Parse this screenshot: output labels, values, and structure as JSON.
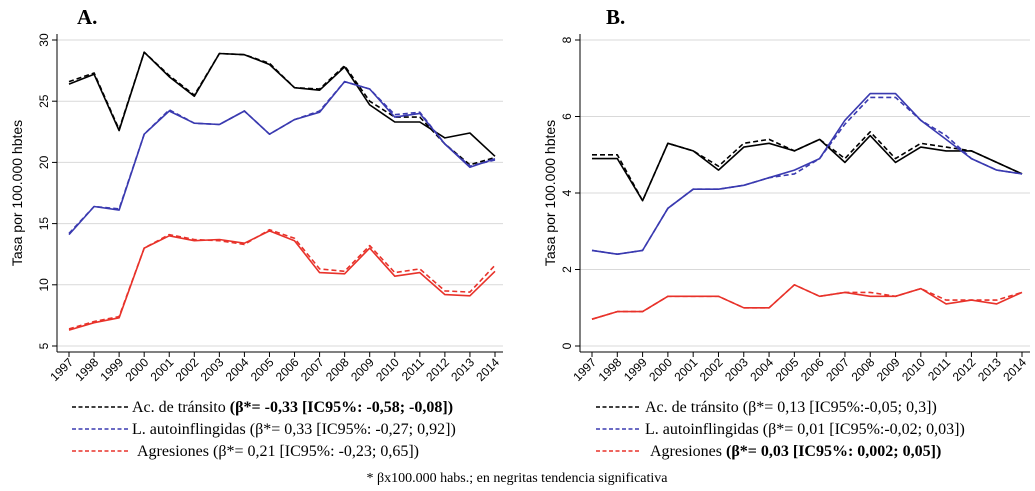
{
  "colors": {
    "transito": "#000000",
    "autoinfligidas": "#3a3ab0",
    "agresiones": "#e8322a",
    "grid": "#d9d9d9"
  },
  "chart_data": [
    {
      "type": "line",
      "panel_label": "A.",
      "ylabel": "Tasa por 100.000 hbtes",
      "ylim": [
        5,
        30
      ],
      "yticks": [
        5,
        10,
        15,
        20,
        25,
        30
      ],
      "x": [
        "1997",
        "1998",
        "1999",
        "2000",
        "2001",
        "2002",
        "2003",
        "2004",
        "2005",
        "2006",
        "2007",
        "2008",
        "2009",
        "2010",
        "2011",
        "2012",
        "2013",
        "2014"
      ],
      "series": [
        {
          "name": "Ac. de tránsito",
          "key": "transito",
          "values": [
            26.4,
            27.2,
            22.6,
            29.0,
            27.0,
            25.4,
            28.9,
            28.8,
            28.0,
            26.1,
            25.9,
            27.8,
            24.7,
            23.3,
            23.3,
            22.0,
            22.4,
            20.5
          ],
          "trend": [
            26.6,
            27.3,
            22.7,
            29.0,
            27.1,
            25.5,
            28.9,
            28.8,
            28.1,
            26.1,
            26.0,
            27.9,
            25.0,
            23.7,
            23.7,
            21.5,
            19.8,
            20.4
          ]
        },
        {
          "name": "L. autoinflingidas",
          "key": "autoinfligidas",
          "values": [
            14.1,
            16.4,
            16.1,
            22.3,
            24.2,
            23.2,
            23.1,
            24.2,
            22.3,
            23.5,
            24.1,
            26.6,
            26.0,
            23.7,
            24.0,
            21.5,
            19.6,
            20.3
          ],
          "trend": [
            14.2,
            16.4,
            16.2,
            22.3,
            24.3,
            23.2,
            23.1,
            24.2,
            22.3,
            23.5,
            24.2,
            26.6,
            26.0,
            23.9,
            24.1,
            21.5,
            19.7,
            20.2
          ]
        },
        {
          "name": "Agresiones",
          "key": "agresiones",
          "values": [
            6.3,
            6.9,
            7.3,
            13.0,
            14.0,
            13.6,
            13.7,
            13.4,
            14.4,
            13.6,
            11.0,
            10.9,
            13.0,
            10.7,
            11.0,
            9.2,
            9.1,
            11.1
          ],
          "trend": [
            6.4,
            7.0,
            7.4,
            13.0,
            14.1,
            13.7,
            13.6,
            13.3,
            14.5,
            13.8,
            11.3,
            11.1,
            13.2,
            11.0,
            11.3,
            9.5,
            9.4,
            11.6
          ]
        }
      ],
      "legend": [
        {
          "key": "transito",
          "text": "Ac. de tránsito ",
          "bold": "(β*= -0,33 [IC95%: -0,58; -0,08])"
        },
        {
          "key": "autoinfligidas",
          "text": "L. autoinflingidas (β*= 0,33 [IC95%: -0,27; 0,92])",
          "bold": ""
        },
        {
          "key": "agresiones",
          "text": "Agresiones (β*= 0,21 [IC95%: -0,23; 0,65])",
          "bold": ""
        }
      ]
    },
    {
      "type": "line",
      "panel_label": "B.",
      "ylabel": "Tasa por 100.000 hbtes",
      "ylim": [
        0,
        8
      ],
      "yticks": [
        0,
        2,
        4,
        6,
        8
      ],
      "x": [
        "1997",
        "1998",
        "1999",
        "2000",
        "2001",
        "2002",
        "2003",
        "2004",
        "2005",
        "2006",
        "2007",
        "2008",
        "2009",
        "2010",
        "2011",
        "2012",
        "2013",
        "2014"
      ],
      "series": [
        {
          "name": "Ac. de tránsito",
          "key": "transito",
          "values": [
            4.9,
            4.9,
            3.8,
            5.3,
            5.1,
            4.6,
            5.2,
            5.3,
            5.1,
            5.4,
            4.8,
            5.5,
            4.8,
            5.2,
            5.1,
            5.1,
            4.8,
            4.5
          ],
          "trend": [
            5.0,
            5.0,
            3.8,
            5.3,
            5.1,
            4.7,
            5.3,
            5.4,
            5.1,
            5.4,
            4.9,
            5.6,
            4.9,
            5.3,
            5.2,
            5.1,
            4.8,
            4.5
          ]
        },
        {
          "name": "L. autoinflingidas",
          "key": "autoinfligidas",
          "values": [
            2.5,
            2.4,
            2.5,
            3.6,
            4.1,
            4.1,
            4.2,
            4.4,
            4.6,
            4.9,
            5.9,
            6.6,
            6.6,
            5.9,
            5.4,
            4.9,
            4.6,
            4.5
          ],
          "trend": [
            2.5,
            2.4,
            2.5,
            3.6,
            4.1,
            4.1,
            4.2,
            4.4,
            4.5,
            4.9,
            5.8,
            6.5,
            6.5,
            5.9,
            5.5,
            4.9,
            4.6,
            4.5
          ]
        },
        {
          "name": "Agresiones",
          "key": "agresiones",
          "values": [
            0.7,
            0.9,
            0.9,
            1.3,
            1.3,
            1.3,
            1.0,
            1.0,
            1.6,
            1.3,
            1.4,
            1.3,
            1.3,
            1.5,
            1.1,
            1.2,
            1.1,
            1.4
          ],
          "trend": [
            0.7,
            0.9,
            0.9,
            1.3,
            1.3,
            1.3,
            1.0,
            1.0,
            1.6,
            1.3,
            1.4,
            1.4,
            1.3,
            1.5,
            1.2,
            1.2,
            1.2,
            1.4
          ]
        }
      ],
      "legend": [
        {
          "key": "transito",
          "text": "Ac. de tránsito (β*= 0,13 [IC95%:-0,05; 0,3])",
          "bold": ""
        },
        {
          "key": "autoinfligidas",
          "text": "L. autoinflingidas (β*= 0,01 [IC95%:-0,02; 0,03])",
          "bold": ""
        },
        {
          "key": "agresiones",
          "text": "Agresiones ",
          "bold": "(β*= 0,03 [IC95%: 0,002; 0,05])"
        }
      ]
    }
  ],
  "footnote": "* βx100.000 habs.; en negritas tendencia significativa"
}
